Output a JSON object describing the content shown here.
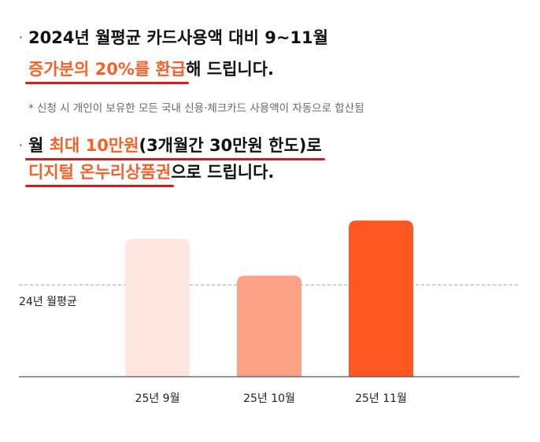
{
  "section1": {
    "line1": "2024년 월평균 카드사용액 대비 9~11월",
    "line2_highlight": "증가분의 20%를 환급",
    "line2_rest": "해 드립니다.",
    "note": "* 신청 시 개인이 보유한 모든 국내 신용·체크카드 사용액이 자동으로 합산됨"
  },
  "section2": {
    "line1_prefix": "월 ",
    "line1_highlight": "최대 10만원",
    "line1_rest": "(3개월간 30만원 한도)로",
    "line2_highlight": "디지털 온누리상품권",
    "line2_rest": "으로 드립니다."
  },
  "bullet": "·",
  "colors": {
    "highlight": "#f4622b",
    "underline": "#d71920",
    "bar1": "#fde6de",
    "bar2": "#fca185",
    "bar3": "#ff5722"
  },
  "chart_data": {
    "type": "bar",
    "categories": [
      "25년 9월",
      "25년 10월",
      "25년 11월"
    ],
    "values": [
      1.5,
      1.1,
      1.7
    ],
    "reference_line": {
      "label": "24년 월평균",
      "value": 1.0
    },
    "ylim": [
      0,
      1.96
    ],
    "grid": false
  }
}
